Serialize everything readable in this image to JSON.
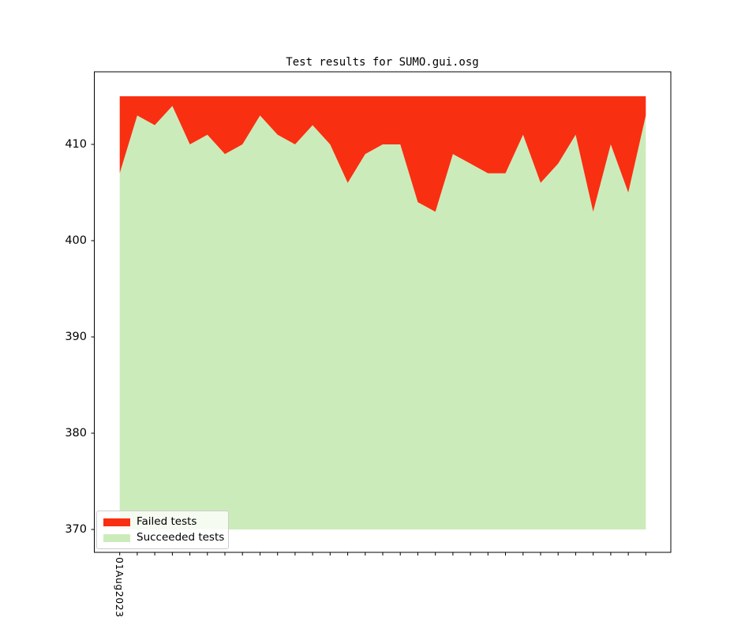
{
  "title": "Test results for SUMO.gui.osg",
  "legend": {
    "items": [
      {
        "label": "Failed tests",
        "color": "#f92f11"
      },
      {
        "label": "Succeeded tests",
        "color": "#cbecba"
      }
    ],
    "position": "lower left",
    "border_color": "#cccccc"
  },
  "axes": {
    "x_first_tick_label": "01Aug2023",
    "x_tick_count": 31,
    "y_tick_labels": [
      "370",
      "380",
      "390",
      "400",
      "410"
    ],
    "spine_color": "#000000"
  },
  "chart_data": {
    "type": "area",
    "stacked": true,
    "title": "Test results for SUMO.gui.osg",
    "xlabel": "",
    "ylabel": "",
    "x_tick_count": 31,
    "x_first_label": "01Aug2023",
    "yticks": [
      370,
      380,
      390,
      400,
      410
    ],
    "ylim": [
      367.5,
      417.5
    ],
    "baseline": 370,
    "total_per_day": 415,
    "grid": false,
    "legend_position": "lower left",
    "series": [
      {
        "name": "Failed tests",
        "color": "#f92f11",
        "values": [
          8,
          2,
          3,
          1,
          5,
          4,
          6,
          5,
          2,
          4,
          5,
          3,
          5,
          9,
          6,
          5,
          5,
          11,
          12,
          6,
          7,
          8,
          8,
          4,
          9,
          7,
          4,
          12,
          5,
          10,
          2
        ]
      },
      {
        "name": "Succeeded tests",
        "color": "#cbecba",
        "values": [
          407,
          413,
          412,
          414,
          410,
          411,
          409,
          410,
          413,
          411,
          410,
          412,
          410,
          406,
          409,
          410,
          410,
          404,
          403,
          409,
          408,
          407,
          407,
          411,
          406,
          408,
          411,
          403,
          410,
          405,
          413
        ]
      }
    ]
  }
}
